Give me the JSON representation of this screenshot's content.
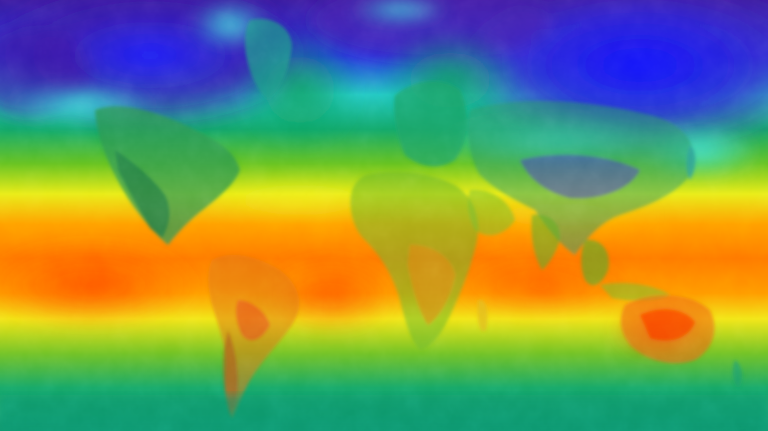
{
  "map": {
    "projection": "equirectangular-like",
    "variable": "surface-temperature-heatmap",
    "palette": {
      "coldest": "#3a13a6",
      "cold": "#1d2cf0",
      "cool": "#21d2d2",
      "mild": "#0fa66a",
      "temperate": "#7ac524",
      "warm": "#f0ee18",
      "hot": "#ff9a00",
      "hottest": "#ff3a00"
    }
  }
}
